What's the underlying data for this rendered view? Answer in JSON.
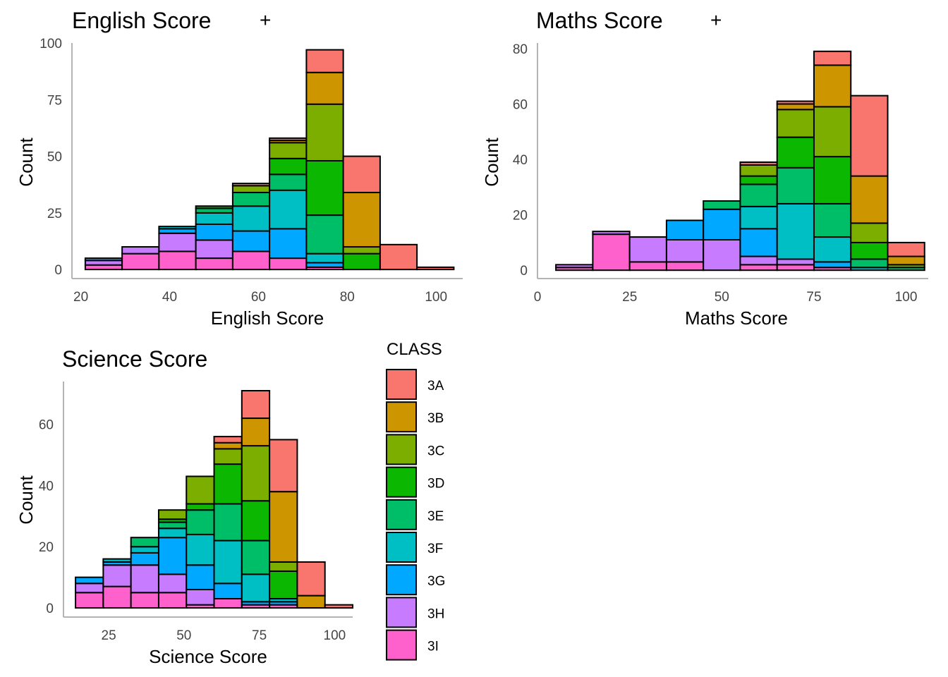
{
  "classes": [
    "3A",
    "3B",
    "3C",
    "3D",
    "3E",
    "3F",
    "3G",
    "3H",
    "3I"
  ],
  "colors": {
    "3A": "#F8766D",
    "3B": "#CD9600",
    "3C": "#7CAE00",
    "3D": "#0CB702",
    "3E": "#00BE67",
    "3F": "#00BFC4",
    "3G": "#00A9FF",
    "3H": "#C77CFF",
    "3I": "#FF61CC"
  },
  "legend": {
    "title": "CLASS",
    "labels": [
      "3A",
      "3B",
      "3C",
      "3D",
      "3E",
      "3F",
      "3G",
      "3H",
      "3I"
    ]
  },
  "chart_data": [
    {
      "id": "english",
      "type": "bar",
      "title": "English Score",
      "title_suffix": "+",
      "xlabel": "English Score",
      "ylabel": "Count",
      "xlim": [
        18,
        106
      ],
      "ylim": [
        -4,
        100
      ],
      "xticks": [
        20,
        40,
        60,
        80,
        100
      ],
      "yticks": [
        0,
        25,
        50,
        75,
        100
      ],
      "bins": [
        {
          "x0": 21.0,
          "x1": 29.3,
          "counts": {
            "3I": 2,
            "3H": 2,
            "3G": 1
          }
        },
        {
          "x0": 29.3,
          "x1": 37.6,
          "counts": {
            "3I": 7,
            "3H": 3
          }
        },
        {
          "x0": 37.6,
          "x1": 45.9,
          "counts": {
            "3I": 8,
            "3H": 8,
            "3G": 2,
            "3F": 1
          }
        },
        {
          "x0": 45.9,
          "x1": 54.2,
          "counts": {
            "3I": 5,
            "3H": 8,
            "3G": 7,
            "3F": 5,
            "3E": 2,
            "3D": 1
          }
        },
        {
          "x0": 54.2,
          "x1": 62.5,
          "counts": {
            "3I": 8,
            "3G": 9,
            "3F": 11,
            "3E": 6,
            "3C": 3,
            "3A": 1
          }
        },
        {
          "x0": 62.5,
          "x1": 70.8,
          "counts": {
            "3I": 5,
            "3G": 13,
            "3F": 17,
            "3E": 7,
            "3D": 7,
            "3C": 7,
            "3B": 1,
            "3A": 1
          }
        },
        {
          "x0": 70.8,
          "x1": 79.1,
          "counts": {
            "3I": 1,
            "3G": 2,
            "3F": 4,
            "3E": 17,
            "3D": 24,
            "3C": 25,
            "3B": 14,
            "3A": 10
          }
        },
        {
          "x0": 79.1,
          "x1": 87.4,
          "counts": {
            "3D": 7,
            "3C": 3,
            "3B": 24,
            "3A": 16
          }
        },
        {
          "x0": 87.4,
          "x1": 95.7,
          "counts": {
            "3A": 11
          }
        },
        {
          "x0": 95.7,
          "x1": 104.0,
          "counts": {
            "3A": 1
          }
        }
      ]
    },
    {
      "id": "maths",
      "type": "bar",
      "title": "Maths Score",
      "title_suffix": "+",
      "xlabel": "Maths Score",
      "ylabel": "Count",
      "xlim": [
        0,
        106
      ],
      "ylim": [
        -3,
        82
      ],
      "xticks": [
        0,
        25,
        50,
        75,
        100
      ],
      "yticks": [
        0,
        20,
        40,
        60,
        80
      ],
      "bins": [
        {
          "x0": 5,
          "x1": 15,
          "counts": {
            "3I": 1,
            "3H": 1
          }
        },
        {
          "x0": 15,
          "x1": 25,
          "counts": {
            "3I": 13,
            "3H": 1
          }
        },
        {
          "x0": 25,
          "x1": 35,
          "counts": {
            "3I": 3,
            "3H": 9
          }
        },
        {
          "x0": 35,
          "x1": 45,
          "counts": {
            "3I": 3,
            "3H": 8,
            "3G": 7
          }
        },
        {
          "x0": 45,
          "x1": 55,
          "counts": {
            "3H": 11,
            "3G": 11,
            "3E": 3
          }
        },
        {
          "x0": 55,
          "x1": 65,
          "counts": {
            "3I": 2,
            "3H": 3,
            "3G": 10,
            "3F": 8,
            "3E": 8,
            "3D": 3,
            "3C": 4,
            "3A": 1
          }
        },
        {
          "x0": 65,
          "x1": 75,
          "counts": {
            "3I": 2,
            "3H": 2,
            "3F": 20,
            "3E": 13,
            "3D": 11,
            "3C": 10,
            "3B": 2,
            "3A": 1
          }
        },
        {
          "x0": 75,
          "x1": 85,
          "counts": {
            "3I": 1,
            "3G": 2,
            "3F": 9,
            "3E": 12,
            "3D": 17,
            "3C": 18,
            "3B": 15,
            "3A": 5
          }
        },
        {
          "x0": 85,
          "x1": 95,
          "counts": {
            "3F": 1,
            "3E": 3,
            "3D": 6,
            "3C": 7,
            "3B": 17,
            "3A": 29
          }
        },
        {
          "x0": 95,
          "x1": 105,
          "counts": {
            "3E": 1,
            "3C": 1,
            "3B": 3,
            "3A": 5
          }
        }
      ]
    },
    {
      "id": "science",
      "type": "bar",
      "title": "Science Score",
      "title_suffix": "",
      "xlabel": "Science Score",
      "ylabel": "Count",
      "xlim": [
        10,
        106
      ],
      "ylim": [
        -3,
        74
      ],
      "xticks": [
        25,
        50,
        75,
        100
      ],
      "yticks": [
        0,
        20,
        40,
        60
      ],
      "bins": [
        {
          "x0": 14.0,
          "x1": 23.2,
          "counts": {
            "3I": 5,
            "3H": 3,
            "3G": 2
          }
        },
        {
          "x0": 23.2,
          "x1": 32.4,
          "counts": {
            "3I": 7,
            "3H": 7,
            "3G": 1,
            "3F": 1
          }
        },
        {
          "x0": 32.4,
          "x1": 41.6,
          "counts": {
            "3I": 5,
            "3H": 9,
            "3G": 4,
            "3F": 2,
            "3E": 3
          }
        },
        {
          "x0": 41.6,
          "x1": 50.8,
          "counts": {
            "3I": 5,
            "3H": 6,
            "3G": 12,
            "3F": 3,
            "3E": 2,
            "3D": 1,
            "3C": 3
          }
        },
        {
          "x0": 50.8,
          "x1": 60.0,
          "counts": {
            "3I": 1,
            "3H": 5,
            "3G": 8,
            "3F": 10,
            "3E": 8,
            "3D": 2,
            "3C": 9
          }
        },
        {
          "x0": 60.0,
          "x1": 69.2,
          "counts": {
            "3I": 3,
            "3G": 5,
            "3F": 14,
            "3E": 12,
            "3D": 13,
            "3C": 5,
            "3B": 2,
            "3A": 2
          }
        },
        {
          "x0": 69.2,
          "x1": 78.4,
          "counts": {
            "3I": 1,
            "3G": 1,
            "3F": 9,
            "3E": 11,
            "3D": 13,
            "3C": 18,
            "3B": 9,
            "3A": 9
          }
        },
        {
          "x0": 78.4,
          "x1": 87.6,
          "counts": {
            "3I": 1,
            "3G": 1,
            "3F": 1,
            "3D": 9,
            "3C": 3,
            "3B": 23,
            "3A": 17
          }
        },
        {
          "x0": 87.6,
          "x1": 96.8,
          "counts": {
            "3B": 4,
            "3A": 11
          }
        },
        {
          "x0": 96.8,
          "x1": 106.0,
          "counts": {
            "3A": 1
          }
        }
      ]
    }
  ]
}
